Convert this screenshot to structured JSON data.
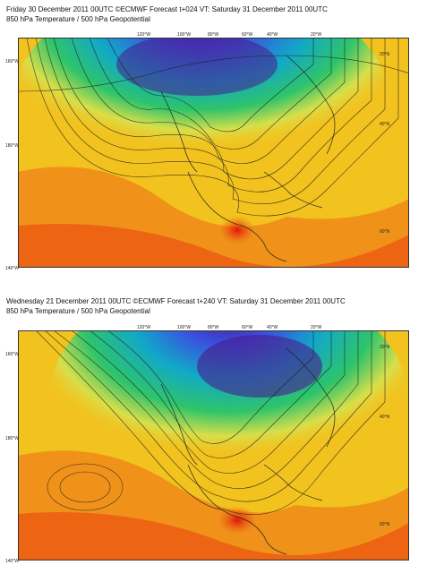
{
  "panels": [
    {
      "title": "Friday 30 December 2011 00UTC ©ECMWF Forecast t+024 VT: Saturday 31 December 2011 00UTC",
      "subtitle": "850 hPa Temperature / 500 hPa Geopotential",
      "top_labels": [
        "120°W",
        "100°W",
        "80°W",
        "60°W",
        "40°W",
        "20°W"
      ],
      "left_labels": [
        "160°W",
        "180°W",
        "140°W"
      ],
      "right_labels": [
        "20°N",
        "40°N",
        "60°N"
      ]
    },
    {
      "title": "Wednesday 21 December 2011 00UTC ©ECMWF Forecast t+240 VT: Saturday 31 December 2011 00UTC",
      "subtitle": "850 hPa Temperature / 500 hPa Geopotential",
      "top_labels": [
        "120°W",
        "100°W",
        "80°W",
        "60°W",
        "40°W",
        "20°W"
      ],
      "left_labels": [
        "160°W",
        "180°W",
        "140°W"
      ],
      "right_labels": [
        "20°N",
        "40°N",
        "60°N"
      ]
    }
  ],
  "colors": {
    "cold_core": "#4a1a8a",
    "cold": "#3a4fe0",
    "cool": "#12a8c8",
    "mild": "#2ec46a",
    "neutral": "#d8df4a",
    "warm": "#f2c21e",
    "hot": "#f08a1a",
    "very_hot": "#ec5a12",
    "extreme": "#e2140c"
  }
}
